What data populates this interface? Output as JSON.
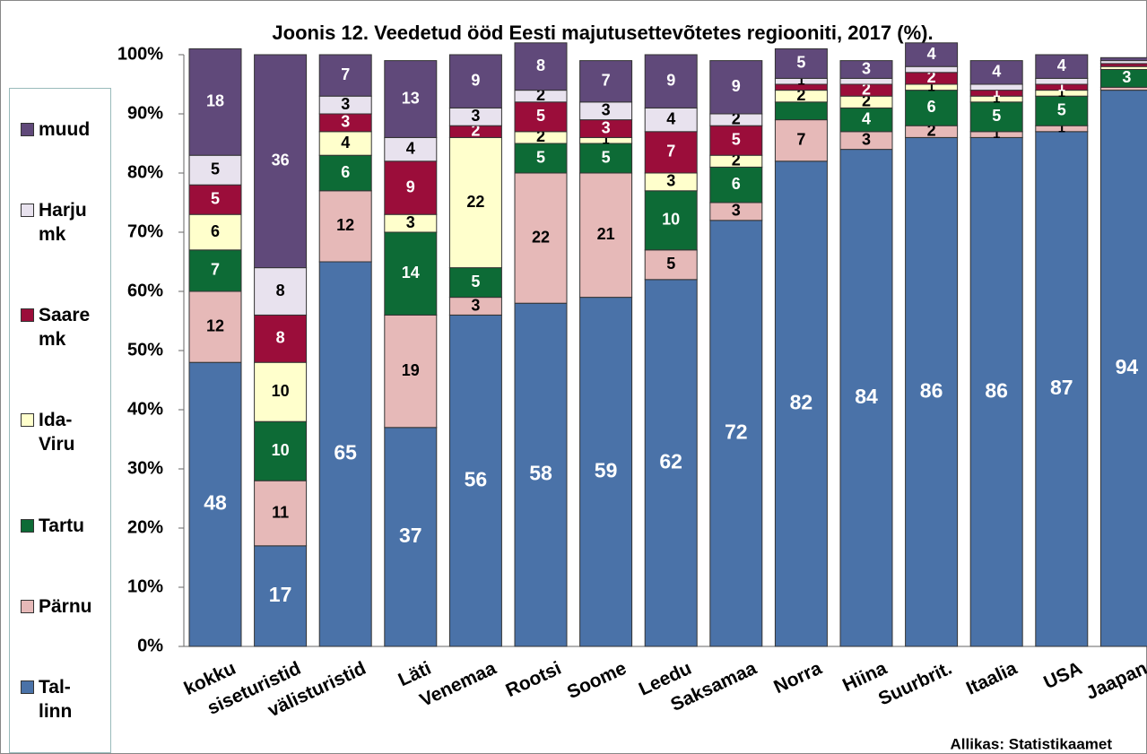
{
  "chart_data": {
    "type": "stacked_bar",
    "title": "Joonis 12. Veedetud ööd Eesti majutusettevõtetes regiooniti, 2017 (%).",
    "source": "Allikas: Statistikaamet",
    "categories": [
      "kokku",
      "siseturistid",
      "välisturistid",
      "Läti",
      "Venemaa",
      "Rootsi",
      "Soome",
      "Leedu",
      "Saksamaa",
      "Norra",
      "Hiina",
      "Suurbrit.",
      "Itaalia",
      "USA",
      "Jaapan"
    ],
    "series": [
      {
        "name": "Tal-linn",
        "color": "#4a72a8",
        "values": [
          48,
          17,
          65,
          37,
          56,
          58,
          59,
          62,
          72,
          82,
          84,
          86,
          86,
          87,
          94
        ]
      },
      {
        "name": "Pärnu",
        "color": "#e6b9b8",
        "values": [
          12,
          11,
          12,
          19,
          3,
          22,
          21,
          5,
          3,
          7,
          3,
          2,
          1,
          1,
          0.5
        ],
        "value_labels": [
          "12",
          "11",
          "12",
          "19",
          "3",
          "22",
          "21",
          "5",
          "3",
          "7",
          "3",
          "2",
          "1",
          "1",
          null
        ]
      },
      {
        "name": "Tartu",
        "color": "#0d6b36",
        "values": [
          7,
          10,
          6,
          14,
          5,
          5,
          5,
          10,
          6,
          3,
          4,
          6,
          5,
          5,
          3
        ],
        "value_labels": [
          "7",
          "10",
          "6",
          "14",
          "5",
          "5",
          "5",
          "10",
          "6",
          null,
          "4",
          "6",
          "5",
          "5",
          "3"
        ]
      },
      {
        "name": "Ida-Viru",
        "color": "#ffffcc",
        "values": [
          6,
          10,
          4,
          3,
          22,
          2,
          1,
          3,
          2,
          2,
          2,
          1,
          1,
          1,
          0.5
        ],
        "value_labels": [
          "6",
          "10",
          "4",
          "3",
          "22",
          "2",
          "1",
          "3",
          "2",
          "2",
          "2",
          "1",
          "1",
          "1",
          null
        ]
      },
      {
        "name": "Saare mk",
        "color": "#9b0d3a",
        "values": [
          5,
          8,
          3,
          9,
          2,
          5,
          3,
          7,
          5,
          1,
          2,
          2,
          1,
          1,
          0.5
        ],
        "value_labels": [
          "5",
          "8",
          "3",
          "9",
          "2",
          "5",
          "3",
          "7",
          "5",
          null,
          "2",
          "2",
          "1",
          "1",
          null
        ]
      },
      {
        "name": "Harju mk",
        "color": "#e8e2ee",
        "values": [
          5,
          8,
          3,
          4,
          3,
          2,
          3,
          4,
          2,
          1,
          1,
          1,
          1,
          1,
          0.5
        ],
        "value_labels": [
          "5",
          "8",
          "3",
          "4",
          "3",
          "2",
          "3",
          "4",
          "2",
          "1",
          null,
          null,
          null,
          null,
          null
        ]
      },
      {
        "name": "muud",
        "color": "#60497a",
        "values": [
          18,
          36,
          7,
          13,
          9,
          8,
          7,
          9,
          9,
          5,
          3,
          4,
          4,
          4,
          0.5
        ],
        "value_labels": [
          "18",
          "36",
          "7",
          "13",
          "9",
          "8",
          "7",
          "9",
          "9",
          "5",
          "3",
          "4",
          "4",
          "4",
          null
        ]
      }
    ],
    "ylim": [
      0,
      100
    ],
    "yticks": [
      {
        "value": 0,
        "label": "0%"
      },
      {
        "value": 10,
        "label": "10%"
      },
      {
        "value": 20,
        "label": "20%"
      },
      {
        "value": 30,
        "label": "30%"
      },
      {
        "value": 40,
        "label": "40%"
      },
      {
        "value": 50,
        "label": "50%"
      },
      {
        "value": 60,
        "label": "60%"
      },
      {
        "value": 70,
        "label": "70%"
      },
      {
        "value": 80,
        "label": "80%"
      },
      {
        "value": 90,
        "label": "90%"
      },
      {
        "value": 100,
        "label": "100%"
      }
    ]
  }
}
